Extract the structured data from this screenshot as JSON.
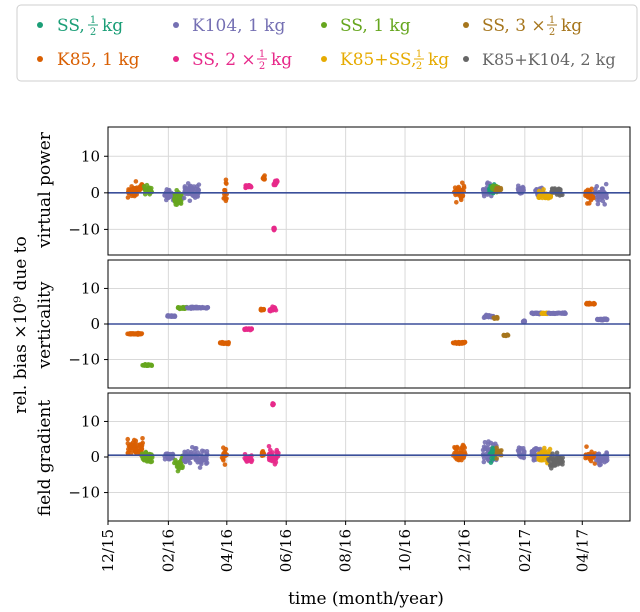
{
  "chart_data": {
    "type": "scatter",
    "xlabel": "time (month/year)",
    "x_tick_labels": [
      "12/15",
      "02/16",
      "04/16",
      "06/16",
      "08/16",
      "10/16",
      "12/16",
      "02/17",
      "04/17"
    ],
    "x_ticks": [
      "2015-12-01",
      "2016-02-01",
      "2016-04-01",
      "2016-06-01",
      "2016-08-01",
      "2016-10-01",
      "2016-12-01",
      "2017-02-01",
      "2017-04-01"
    ],
    "xlim": [
      "2015-12-01",
      "2017-05-20"
    ],
    "grid": true,
    "legend": {
      "placement": "top",
      "columns": 4
    },
    "series_legend": [
      {
        "key": "ss_half",
        "name_main": "SS, ",
        "name_frac": true,
        "name_pre": "",
        "name_tail": "kg",
        "color": "#1b9e77"
      },
      {
        "key": "k104_1",
        "name": "K104, 1 kg",
        "color": "#7570b3"
      },
      {
        "key": "ss_1",
        "name": "SS, 1 kg",
        "color": "#66a61e"
      },
      {
        "key": "ss_3half",
        "name_main": "SS, 3 × ",
        "name_frac": true,
        "name_tail": "kg",
        "color": "#a6761d"
      },
      {
        "key": "k85_1",
        "name": "K85, 1 kg",
        "color": "#d95f02"
      },
      {
        "key": "ss_2half",
        "name_main": "SS, 2 × ",
        "name_frac": true,
        "name_tail": "kg",
        "color": "#e7298a"
      },
      {
        "key": "k85ss_half",
        "name_main": "K85+SS, ",
        "name_frac": true,
        "name_tail": "kg",
        "color": "#e6ab02"
      },
      {
        "key": "k85k104_2",
        "name": "K85+K104, 2 kg",
        "color": "#666666"
      }
    ],
    "legend_text": {
      "ss_half": "SS,",
      "ss_3half_pre": "SS, 3 ×",
      "ss_2half_pre": "SS, 2 ×",
      "k85ss_pre": "K85+SS,",
      "frac_num": "1",
      "frac_den": "2",
      "kg": "kg",
      "k104": "K104, 1 kg",
      "ss1": "SS, 1 kg",
      "k85": "K85, 1 kg",
      "k85k104": "K85+K104, 2 kg"
    },
    "panels": [
      {
        "ylabel": [
          "virtual power"
        ],
        "ylim": [
          -17,
          18
        ],
        "yticks": [
          10,
          0,
          -10
        ],
        "ytick_labels": [
          "10",
          "0",
          "−10"
        ],
        "reference_line": 0,
        "clusters": [
          {
            "series": "k85_1",
            "start": "2015-12-21",
            "end": "2015-12-31",
            "center": 0.5,
            "spread": 1.6
          },
          {
            "series": "k85_1",
            "start": "2016-01-01",
            "end": "2016-01-06",
            "center": 1.5,
            "spread": 1.0
          },
          {
            "series": "ss_1",
            "start": "2016-01-07",
            "end": "2016-01-15",
            "center": 0.6,
            "spread": 1.1
          },
          {
            "series": "k104_1",
            "start": "2016-01-28",
            "end": "2016-02-06",
            "center": -0.8,
            "spread": 1.2
          },
          {
            "series": "ss_1",
            "start": "2016-02-07",
            "end": "2016-02-16",
            "center": -1.4,
            "spread": 1.8
          },
          {
            "series": "k104_1",
            "start": "2016-02-17",
            "end": "2016-03-04",
            "center": 0.2,
            "spread": 2.4
          },
          {
            "series": "k85_1",
            "start": "2016-03-28",
            "end": "2016-04-01",
            "center": 0.4,
            "spread": 3.2
          },
          {
            "series": "ss_2half",
            "start": "2016-04-20",
            "end": "2016-04-26",
            "center": 1.8,
            "spread": 0.6
          },
          {
            "series": "k85_1",
            "start": "2016-05-08",
            "end": "2016-05-10",
            "center": 4.0,
            "spread": 0.5
          },
          {
            "series": "ss_2half",
            "start": "2016-05-19",
            "end": "2016-05-23",
            "center": 2.6,
            "spread": 1.0
          },
          {
            "series": "ss_2half",
            "start": "2016-05-19",
            "end": "2016-05-20",
            "center": -9.8,
            "spread": 0.3
          },
          {
            "series": "k85_1",
            "start": "2016-11-20",
            "end": "2016-12-01",
            "center": 0.3,
            "spread": 2.0
          },
          {
            "series": "k104_1",
            "start": "2016-12-20",
            "end": "2016-12-29",
            "center": 0.6,
            "spread": 1.4
          },
          {
            "series": "ss_half",
            "start": "2016-12-26",
            "end": "2017-01-01",
            "center": 1.0,
            "spread": 1.0
          },
          {
            "series": "ss_1",
            "start": "2016-12-29",
            "end": "2017-01-05",
            "center": 1.2,
            "spread": 0.8
          },
          {
            "series": "ss_3half",
            "start": "2017-01-02",
            "end": "2017-01-08",
            "center": 0.8,
            "spread": 0.6
          },
          {
            "series": "k104_1",
            "start": "2017-01-25",
            "end": "2017-01-31",
            "center": 0.6,
            "spread": 0.9
          },
          {
            "series": "k104_1",
            "start": "2017-02-11",
            "end": "2017-02-20",
            "center": 0.5,
            "spread": 1.0
          },
          {
            "series": "k85ss_half",
            "start": "2017-02-15",
            "end": "2017-02-28",
            "center": -0.9,
            "spread": 1.0
          },
          {
            "series": "k85k104_2",
            "start": "2017-02-28",
            "end": "2017-03-12",
            "center": 0.6,
            "spread": 1.0
          },
          {
            "series": "k85_1",
            "start": "2017-04-04",
            "end": "2017-04-14",
            "center": -0.9,
            "spread": 1.5
          },
          {
            "series": "k104_1",
            "start": "2017-04-14",
            "end": "2017-04-27",
            "center": -0.5,
            "spread": 1.8
          }
        ]
      },
      {
        "ylabel": [
          "rel. bias ×10⁹ due to",
          "verticality"
        ],
        "ylim": [
          -18,
          18
        ],
        "yticks": [
          10,
          0,
          -10
        ],
        "ytick_labels": [
          "10",
          "0",
          "−10"
        ],
        "reference_line": 0,
        "clusters": [
          {
            "series": "k85_1",
            "start": "2015-12-21",
            "end": "2016-01-05",
            "center": -2.8,
            "spread": 0.15
          },
          {
            "series": "ss_1",
            "start": "2016-01-05",
            "end": "2016-01-15",
            "center": -11.6,
            "spread": 0.2
          },
          {
            "series": "k104_1",
            "start": "2016-01-31",
            "end": "2016-02-08",
            "center": 2.2,
            "spread": 0.2
          },
          {
            "series": "ss_1",
            "start": "2016-02-10",
            "end": "2016-02-20",
            "center": 4.5,
            "spread": 0.2
          },
          {
            "series": "k104_1",
            "start": "2016-02-20",
            "end": "2016-03-13",
            "center": 4.6,
            "spread": 0.2
          },
          {
            "series": "k85_1",
            "start": "2016-03-25",
            "end": "2016-04-03",
            "center": -5.4,
            "spread": 0.2
          },
          {
            "series": "ss_2half",
            "start": "2016-04-19",
            "end": "2016-04-27",
            "center": -1.5,
            "spread": 0.2
          },
          {
            "series": "k85_1",
            "start": "2016-05-06",
            "end": "2016-05-09",
            "center": 4.0,
            "spread": 0.3
          },
          {
            "series": "ss_2half",
            "start": "2016-05-15",
            "end": "2016-05-23",
            "center": 4.1,
            "spread": 0.5
          },
          {
            "series": "k85_1",
            "start": "2016-11-19",
            "end": "2016-12-02",
            "center": -5.3,
            "spread": 0.2
          },
          {
            "series": "k104_1",
            "start": "2016-12-21",
            "end": "2016-12-31",
            "center": 2.2,
            "spread": 0.3
          },
          {
            "series": "ss_3half",
            "start": "2016-12-31",
            "end": "2017-01-04",
            "center": 1.7,
            "spread": 0.2
          },
          {
            "series": "ss_3half",
            "start": "2017-01-10",
            "end": "2017-01-15",
            "center": -3.2,
            "spread": 0.2
          },
          {
            "series": "k104_1",
            "start": "2017-01-30",
            "end": "2017-02-01",
            "center": 0.7,
            "spread": 0.2
          },
          {
            "series": "k104_1",
            "start": "2017-02-08",
            "end": "2017-02-21",
            "center": 3.0,
            "spread": 0.15
          },
          {
            "series": "k85ss_half",
            "start": "2017-02-18",
            "end": "2017-02-25",
            "center": 3.0,
            "spread": 0.15
          },
          {
            "series": "k104_1",
            "start": "2017-02-25",
            "end": "2017-03-15",
            "center": 3.0,
            "spread": 0.15
          },
          {
            "series": "k85_1",
            "start": "2017-04-05",
            "end": "2017-04-15",
            "center": 5.7,
            "spread": 0.2
          },
          {
            "series": "k104_1",
            "start": "2017-04-16",
            "end": "2017-04-27",
            "center": 1.3,
            "spread": 0.2
          }
        ]
      },
      {
        "ylabel": [
          "field gradient"
        ],
        "ylim": [
          -18,
          18
        ],
        "yticks": [
          10,
          0,
          -10
        ],
        "ytick_labels": [
          "10",
          "0",
          "−10"
        ],
        "reference_line": 0.5,
        "clusters": [
          {
            "series": "k85_1",
            "start": "2015-12-21",
            "end": "2016-01-06",
            "center": 2.4,
            "spread": 2.0
          },
          {
            "series": "ss_1",
            "start": "2016-01-05",
            "end": "2016-01-16",
            "center": 0.0,
            "spread": 1.4
          },
          {
            "series": "k104_1",
            "start": "2016-01-28",
            "end": "2016-02-06",
            "center": 0.4,
            "spread": 1.2
          },
          {
            "series": "ss_1",
            "start": "2016-02-07",
            "end": "2016-02-16",
            "center": -1.6,
            "spread": 2.0
          },
          {
            "series": "k104_1",
            "start": "2016-02-17",
            "end": "2016-03-12",
            "center": 0.0,
            "spread": 2.0
          },
          {
            "series": "k85_1",
            "start": "2016-03-27",
            "end": "2016-04-01",
            "center": 0.3,
            "spread": 2.6
          },
          {
            "series": "ss_2half",
            "start": "2016-04-19",
            "end": "2016-04-27",
            "center": -0.6,
            "spread": 1.0
          },
          {
            "series": "k85_1",
            "start": "2016-05-07",
            "end": "2016-05-09",
            "center": 0.8,
            "spread": 0.6
          },
          {
            "series": "ss_2half",
            "start": "2016-05-14",
            "end": "2016-05-24",
            "center": 0.4,
            "spread": 1.6
          },
          {
            "series": "ss_2half",
            "start": "2016-05-18",
            "end": "2016-05-19",
            "center": 14.8,
            "spread": 0.2
          },
          {
            "series": "k85_1",
            "start": "2016-11-19",
            "end": "2016-12-02",
            "center": 1.0,
            "spread": 2.6
          },
          {
            "series": "k104_1",
            "start": "2016-12-20",
            "end": "2017-01-03",
            "center": 1.5,
            "spread": 2.8
          },
          {
            "series": "ss_half",
            "start": "2016-12-27",
            "end": "2017-01-01",
            "center": 0.5,
            "spread": 2.0
          },
          {
            "series": "ss_3half",
            "start": "2017-01-03",
            "end": "2017-01-08",
            "center": 1.0,
            "spread": 1.4
          },
          {
            "series": "k104_1",
            "start": "2017-01-25",
            "end": "2017-02-01",
            "center": 1.0,
            "spread": 1.6
          },
          {
            "series": "k104_1",
            "start": "2017-02-08",
            "end": "2017-02-18",
            "center": 0.8,
            "spread": 1.4
          },
          {
            "series": "k85ss_half",
            "start": "2017-02-15",
            "end": "2017-02-27",
            "center": 0.5,
            "spread": 1.6
          },
          {
            "series": "k85k104_2",
            "start": "2017-02-25",
            "end": "2017-03-12",
            "center": -1.0,
            "spread": 1.4
          },
          {
            "series": "k85_1",
            "start": "2017-04-04",
            "end": "2017-04-15",
            "center": 0.0,
            "spread": 1.6
          },
          {
            "series": "k104_1",
            "start": "2017-04-15",
            "end": "2017-04-27",
            "center": -0.3,
            "spread": 1.8
          }
        ]
      }
    ]
  }
}
